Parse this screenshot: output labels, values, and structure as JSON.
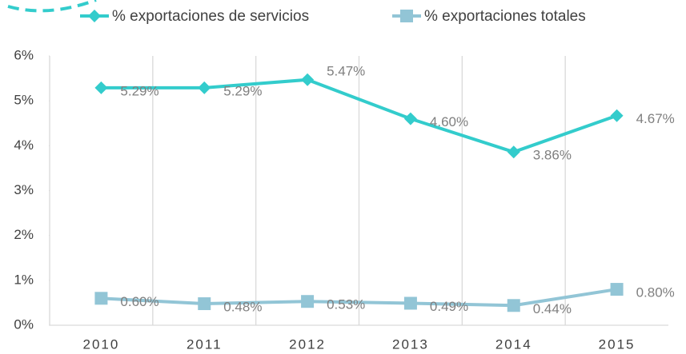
{
  "chart_data": {
    "type": "line",
    "categories": [
      "2010",
      "2011",
      "2012",
      "2013",
      "2014",
      "2015"
    ],
    "series": [
      {
        "name": "% exportaciones de servicios",
        "color": "#33cccc",
        "marker": "diamond",
        "values": [
          5.29,
          5.29,
          5.47,
          4.6,
          3.86,
          4.67
        ],
        "value_labels": [
          "5.29%",
          "5.29%",
          "5.47%",
          "4.60%",
          "3.86%",
          "4.67%"
        ]
      },
      {
        "name": "% exportaciones totales",
        "color": "#92c5d6",
        "marker": "square",
        "values": [
          0.6,
          0.48,
          0.53,
          0.49,
          0.44,
          0.8
        ],
        "value_labels": [
          "0.60%",
          "0.48%",
          "0.53%",
          "0.49%",
          "0.44%",
          "0.80%"
        ]
      }
    ],
    "ylim": [
      0,
      6
    ],
    "yticks": [
      {
        "value": 0,
        "label": "0%"
      },
      {
        "value": 1,
        "label": "1%"
      },
      {
        "value": 2,
        "label": "2%"
      },
      {
        "value": 3,
        "label": "3%"
      },
      {
        "value": 4,
        "label": "4%"
      },
      {
        "value": 5,
        "label": "5%"
      },
      {
        "value": 6,
        "label": "6%"
      }
    ],
    "grid": "vertical",
    "legend": "top"
  }
}
